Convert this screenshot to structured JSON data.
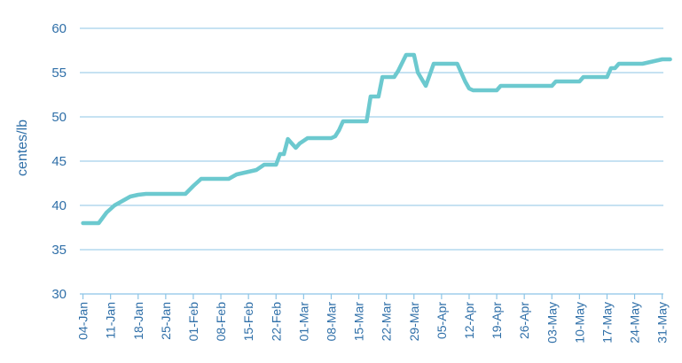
{
  "chart_data": {
    "type": "line",
    "title": "",
    "xlabel": "",
    "ylabel": "centes/lb",
    "ylim": [
      30,
      60
    ],
    "yticks": [
      30,
      35,
      40,
      45,
      50,
      55,
      60
    ],
    "grid": true,
    "line_color": "#6cc9cf",
    "axis_text_color": "#2f6fa8",
    "x_tick_labels": [
      "04-Jan",
      "11-Jan",
      "18-Jan",
      "25-Jan",
      "01-Feb",
      "08-Feb",
      "15-Feb",
      "22-Feb",
      "01-Mar",
      "08-Mar",
      "15-Mar",
      "22-Mar",
      "29-Mar",
      "05-Apr",
      "12-Apr",
      "19-Apr",
      "26-Apr",
      "03-May",
      "10-May",
      "17-May",
      "24-May",
      "31-May"
    ],
    "series": [
      {
        "x": [
          "04-Jan",
          "06-Jan",
          "08-Jan",
          "10-Jan",
          "12-Jan",
          "14-Jan",
          "16-Jan",
          "18-Jan",
          "20-Jan",
          "22-Jan",
          "25-Jan",
          "28-Jan",
          "30-Jan",
          "01-Feb",
          "03-Feb",
          "05-Feb",
          "08-Feb",
          "10-Feb",
          "12-Feb",
          "15-Feb",
          "17-Feb",
          "19-Feb",
          "21-Feb",
          "22-Feb",
          "23-Feb",
          "24-Feb",
          "25-Feb",
          "26-Feb",
          "27-Feb",
          "28-Feb",
          "01-Mar",
          "02-Mar",
          "03-Mar",
          "05-Mar",
          "07-Mar",
          "08-Mar",
          "09-Mar",
          "10-Mar",
          "11-Mar",
          "12-Mar",
          "13-Mar",
          "15-Mar",
          "16-Mar",
          "17-Mar",
          "18-Mar",
          "20-Mar",
          "21-Mar",
          "22-Mar",
          "24-Mar",
          "25-Mar",
          "27-Mar",
          "28-Mar",
          "29-Mar",
          "30-Mar",
          "01-Apr",
          "03-Apr",
          "05-Apr",
          "07-Apr",
          "09-Apr",
          "11-Apr",
          "12-Apr",
          "13-Apr",
          "14-Apr",
          "19-Apr",
          "20-Apr",
          "26-Apr",
          "03-May",
          "04-May",
          "10-May",
          "11-May",
          "17-May",
          "18-May",
          "19-May",
          "20-May",
          "24-May",
          "25-May",
          "26-May",
          "31-May",
          "02-Jun"
        ],
        "values": [
          38.0,
          38.0,
          38.0,
          39.2,
          40.0,
          40.5,
          41.0,
          41.2,
          41.3,
          41.3,
          41.3,
          41.3,
          41.3,
          42.2,
          43.0,
          43.0,
          43.0,
          43.0,
          43.5,
          43.8,
          44.0,
          44.6,
          44.6,
          44.6,
          45.8,
          45.8,
          47.5,
          47.0,
          46.5,
          47.0,
          47.3,
          47.6,
          47.6,
          47.6,
          47.6,
          47.6,
          47.8,
          48.5,
          49.5,
          49.5,
          49.5,
          49.5,
          49.5,
          49.5,
          52.3,
          52.3,
          54.5,
          54.5,
          54.5,
          55.2,
          57.0,
          57.0,
          57.0,
          55.0,
          53.5,
          56.0,
          56.0,
          56.0,
          56.0,
          54.0,
          53.2,
          53.0,
          53.0,
          53.0,
          53.5,
          53.5,
          53.5,
          54.0,
          54.0,
          54.5,
          54.5,
          55.5,
          55.5,
          56.0,
          56.0,
          56.0,
          56.0,
          56.5,
          56.5
        ]
      }
    ]
  }
}
